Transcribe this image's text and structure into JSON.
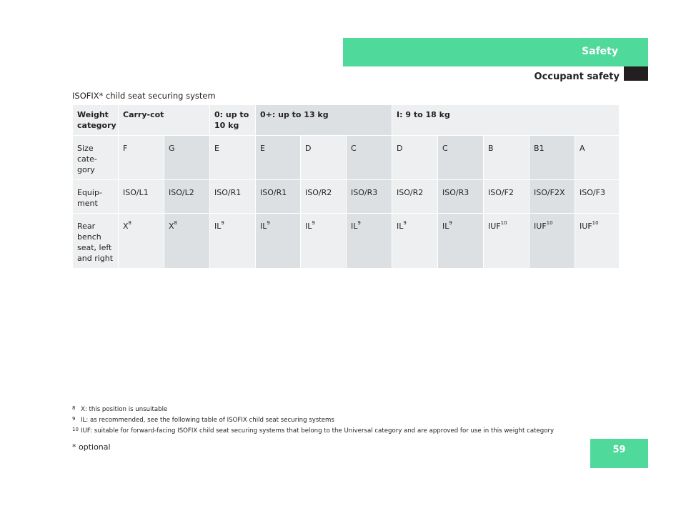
{
  "header": {
    "tab_label": "Safety",
    "section_title": "Occupant safety",
    "table_caption": "ISOFIX* child seat securing system"
  },
  "table": {
    "header_row": {
      "label": "Weight category",
      "groups": [
        "Carry-cot",
        "0: up to 10 kg",
        "0+: up to 13 kg",
        "I: 9 to 18 kg"
      ]
    },
    "size_row": {
      "label": "Size cate-\ngory",
      "values": [
        "F",
        "G",
        "E",
        "E",
        "D",
        "C",
        "D",
        "C",
        "B",
        "B1",
        "A"
      ]
    },
    "equipment_row": {
      "label": "Equip-\nment",
      "values": [
        "ISO/L1",
        "ISO/L2",
        "ISO/R1",
        "ISO/R1",
        "ISO/R2",
        "ISO/R3",
        "ISO/R2",
        "ISO/R3",
        "ISO/F2",
        "ISO/F2X",
        "ISO/F3"
      ]
    },
    "rear_row": {
      "label": "Rear\nbench\nseat, left\nand right",
      "values": [
        {
          "text": "X",
          "sup": "8"
        },
        {
          "text": "X",
          "sup": "8"
        },
        {
          "text": "IL",
          "sup": "9"
        },
        {
          "text": "IL",
          "sup": "9"
        },
        {
          "text": "IL",
          "sup": "9"
        },
        {
          "text": "IL",
          "sup": "9"
        },
        {
          "text": "IL",
          "sup": "9"
        },
        {
          "text": "IL",
          "sup": "9"
        },
        {
          "text": "IUF",
          "sup": "10"
        },
        {
          "text": "IUF",
          "sup": "10"
        },
        {
          "text": "IUF",
          "sup": "10"
        }
      ]
    }
  },
  "footnotes": [
    {
      "num": "8",
      "text": "X: this position is unsuitable"
    },
    {
      "num": "9",
      "text": "IL: as recommended, see the following table of ISOFIX child seat securing systems"
    },
    {
      "num": "10",
      "text": "IUF: suitable for forward-facing ISOFIX child seat securing systems that belong to the Universal category and are approved for use in this weight category"
    }
  ],
  "footer": {
    "optional_note": "* optional",
    "page_number": "59"
  },
  "colors": {
    "accent": "#4fd99b",
    "cell_light": "#edeff0",
    "cell_dark": "#dde0e2",
    "text": "#231f20"
  }
}
